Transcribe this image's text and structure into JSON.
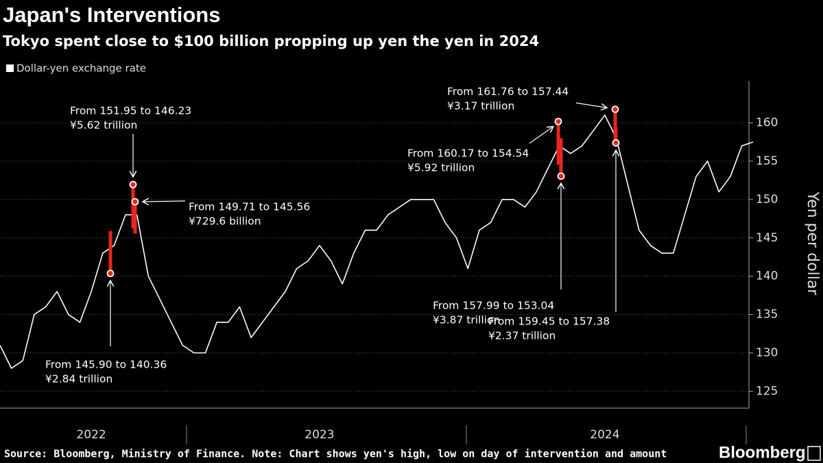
{
  "chart_data": {
    "type": "line",
    "title": "Japan's Interventions",
    "subtitle": "Tokyo spent close to $100 billion propping up yen the yen in 2024",
    "y_label": "Yen per dollar",
    "source": "Source: Bloomberg, Ministry of Finance. Note: Chart shows yen's high, low on day of intervention and amount",
    "brand": "Bloomberg",
    "categories": [
      null,
      null,
      null,
      null,
      null,
      null,
      null,
      null,
      "2022",
      null,
      null,
      null,
      null,
      null,
      null,
      null,
      null,
      null,
      null,
      null,
      null,
      null,
      null,
      null,
      null,
      null,
      null,
      null,
      "2023",
      null,
      null,
      null,
      null,
      null,
      null,
      null,
      null,
      null,
      null,
      null,
      null,
      null,
      null,
      null,
      null,
      null,
      null,
      null,
      null,
      null,
      null,
      null,
      null,
      "2024",
      null,
      null,
      null,
      null,
      null,
      null,
      null,
      null,
      null,
      null,
      null,
      null,
      null
    ],
    "series": [
      {
        "name": "Dollar-yen exchange rate",
        "color": "#ffffff",
        "values": [
          131,
          128,
          129,
          135,
          136,
          138,
          135,
          134,
          138,
          143,
          144,
          148,
          148,
          140,
          137,
          134,
          131,
          130,
          130,
          134,
          134,
          136,
          132,
          134,
          136,
          138,
          141,
          142,
          144,
          142,
          139,
          143,
          146,
          146,
          148,
          149,
          150,
          150,
          150,
          147,
          145,
          141,
          146,
          147,
          150,
          150,
          149,
          151,
          154,
          157,
          156,
          157,
          159,
          161,
          158,
          152,
          146,
          144,
          143,
          143,
          148,
          153,
          155,
          151,
          153,
          157,
          157.5
        ]
      }
    ],
    "interventions": [
      {
        "text": "From 145.90 to 140.36",
        "amount": "¥2.84 trillion",
        "high": 145.9,
        "low": 140.36,
        "color": "#e8251f"
      },
      {
        "text": "From 151.95 to 146.23",
        "amount": "¥5.62 trillion",
        "high": 151.95,
        "low": 146.23,
        "color": "#e8251f"
      },
      {
        "text": "From 149.71 to 145.56",
        "amount": "¥729.6 billion",
        "high": 149.71,
        "low": 145.56,
        "color": "#e8251f"
      },
      {
        "text": "From 160.17 to 154.54",
        "amount": "¥5.92 trillion",
        "high": 160.17,
        "low": 154.54,
        "color": "#e8251f"
      },
      {
        "text": "From 157.99 to 153.04",
        "amount": "¥3.87 trillion",
        "high": 157.99,
        "low": 153.04,
        "color": "#e8251f"
      },
      {
        "text": "From 161.76 to 157.44",
        "amount": "¥3.17 trillion",
        "high": 161.76,
        "low": 157.44,
        "color": "#e8251f"
      },
      {
        "text": "From 159.45 to 157.38",
        "amount": "¥2.37 trillion",
        "high": 159.45,
        "low": 157.38,
        "color": "#e8251f"
      }
    ],
    "ylim": [
      122.8,
      165.1
    ],
    "yticks": [
      125,
      130,
      135,
      140,
      145,
      150,
      155,
      160
    ],
    "grid": true
  }
}
